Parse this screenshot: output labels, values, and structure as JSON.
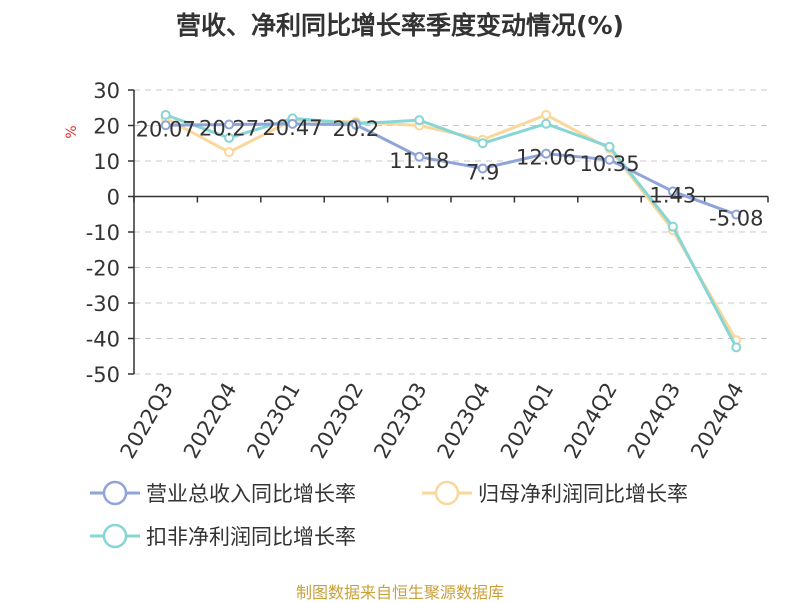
{
  "title": "营收、净利同比增长率季度变动情况(%)",
  "footer": "制图数据来自恒生聚源数据库",
  "chart_data": {
    "type": "line",
    "title": "营收、净利同比增长率季度变动情况(%)",
    "ylabel": "%",
    "ylim": [
      -50,
      30
    ],
    "yticks": [
      30,
      20,
      10,
      0,
      -10,
      -20,
      -30,
      -40,
      -50
    ],
    "categories": [
      "2022Q3",
      "2022Q4",
      "2023Q1",
      "2023Q2",
      "2023Q3",
      "2023Q4",
      "2024Q1",
      "2024Q2",
      "2024Q3",
      "2024Q4"
    ],
    "grid": true,
    "legend_position": "bottom",
    "series": [
      {
        "name": "营业总收入同比增长率",
        "color": "#8fa4d8",
        "values": [
          20.07,
          20.27,
          20.47,
          20.2,
          11.18,
          7.9,
          12.06,
          10.35,
          1.43,
          -5.08
        ],
        "labels": [
          "20.07",
          "20.27",
          "20.47",
          "20.2",
          "11.18",
          "7.9",
          "12.06",
          "10.35",
          "1.43",
          "-5.08"
        ]
      },
      {
        "name": "归母净利润同比增长率",
        "color": "#fad79b",
        "values": [
          22.0,
          12.5,
          21.5,
          21.0,
          20.0,
          16.0,
          23.0,
          13.5,
          -9.5,
          -40.5
        ]
      },
      {
        "name": "扣非净利润同比增长率",
        "color": "#87d5d5",
        "values": [
          23.0,
          16.5,
          22.0,
          20.5,
          21.5,
          15.0,
          20.5,
          14.0,
          -8.5,
          -42.5
        ]
      }
    ]
  }
}
